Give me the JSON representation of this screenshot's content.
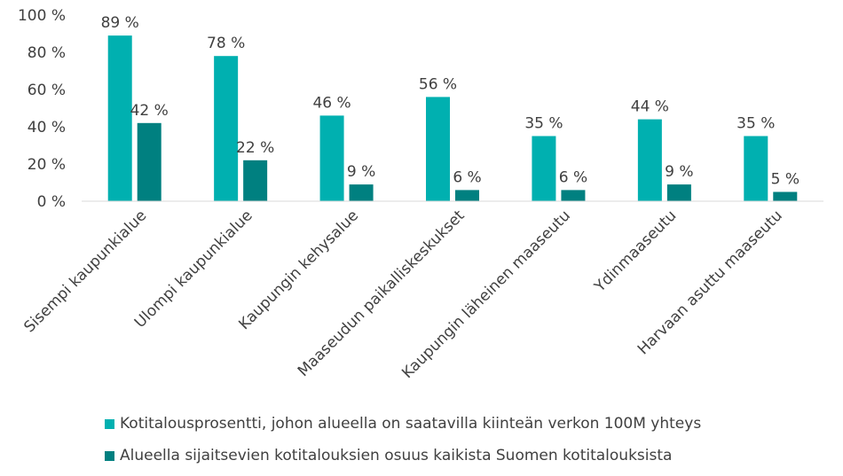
{
  "chart_data": {
    "type": "bar",
    "categories": [
      "Sisempi kaupunkialue",
      "Ulompi kaupunkialue",
      "Kaupungin kehysalue",
      "Maaseudun paikalliskeskukset",
      "Kaupungin läheinen maaseutu",
      "Ydinmaaseutu",
      "Harvaan asuttu maaseutu"
    ],
    "series": [
      {
        "name": "Kotitalousprosentti, johon alueella on saatavilla kiinteän verkon 100M yhteys",
        "values": [
          89,
          78,
          46,
          56,
          35,
          44,
          35
        ],
        "labels": [
          "89 %",
          "78 %",
          "46 %",
          "56 %",
          "35 %",
          "44 %",
          "35 %"
        ],
        "color": "#00B0B0"
      },
      {
        "name": "Alueella sijaitsevien kotitalouksien osuus kaikista Suomen kotitalouksista",
        "values": [
          42,
          22,
          9,
          6,
          6,
          9,
          5
        ],
        "labels": [
          "42 %",
          "22 %",
          "9 %",
          "6 %",
          "6 %",
          "9 %",
          "5 %"
        ],
        "color": "#008080"
      }
    ],
    "yticks": [
      "0 %",
      "20 %",
      "40 %",
      "60 %",
      "80 %",
      "100 %"
    ],
    "ylim": [
      0,
      100
    ],
    "grid": false,
    "legend_position": "bottom"
  }
}
